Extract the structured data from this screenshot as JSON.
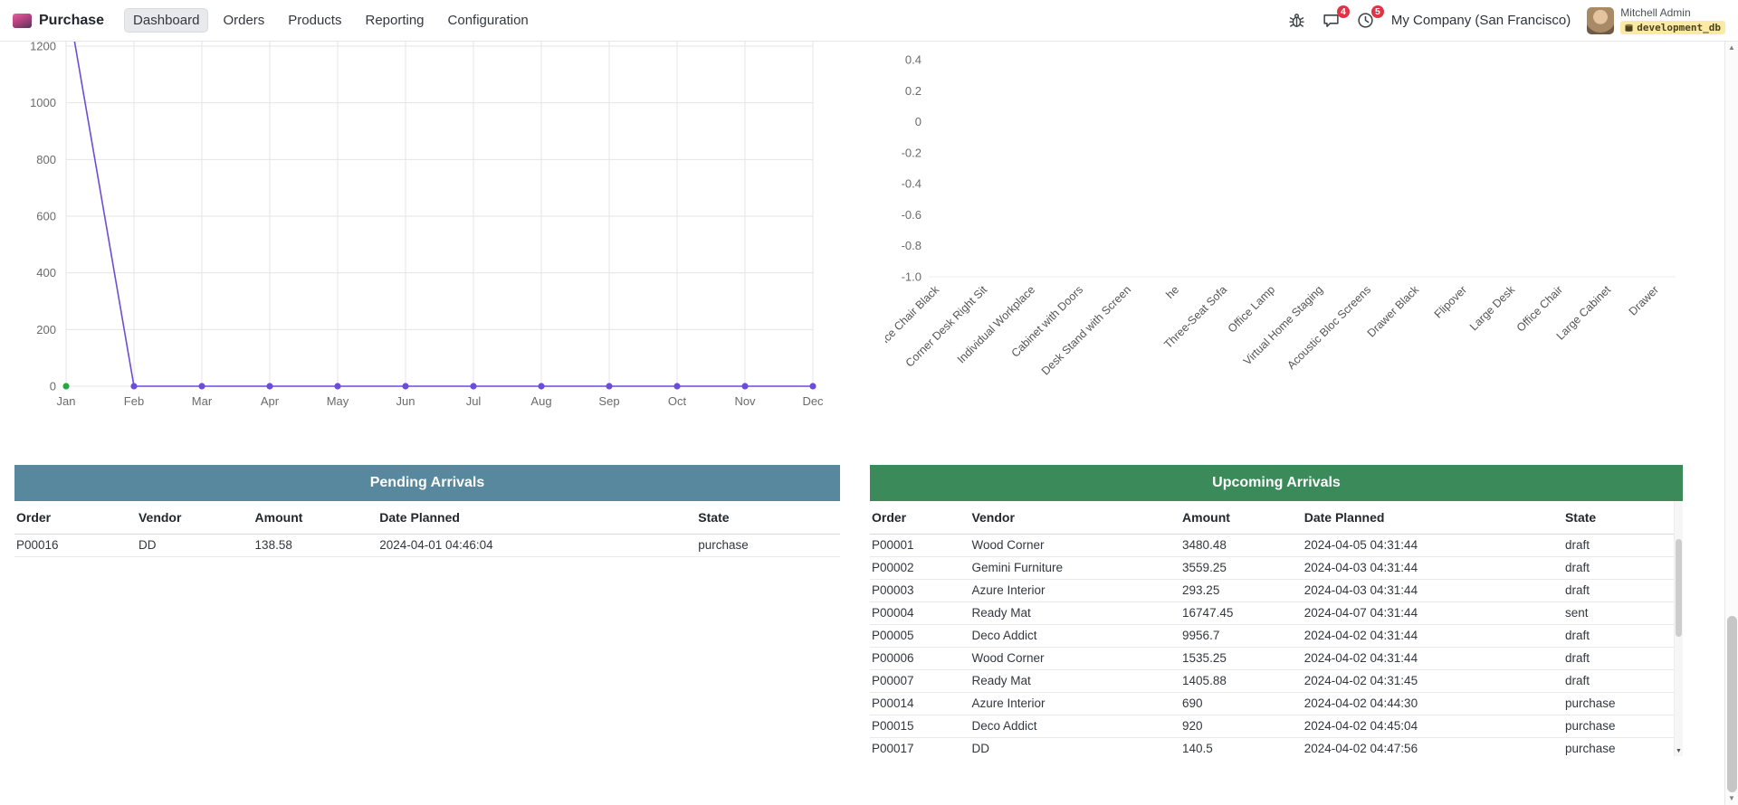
{
  "colors": {
    "badge_red": "#dc3545",
    "db_badge_bg": "#fbeaa6",
    "pending_header_bg": "#57889d",
    "upcoming_header_bg": "#3a8a5a",
    "line_purple": "#6d4cd6",
    "dot_green": "#28a745"
  },
  "nav": {
    "app_name": "Purchase",
    "items": [
      {
        "label": "Dashboard",
        "active": true
      },
      {
        "label": "Orders",
        "active": false
      },
      {
        "label": "Products",
        "active": false
      },
      {
        "label": "Reporting",
        "active": false
      },
      {
        "label": "Configuration",
        "active": false
      }
    ],
    "messages_badge": "4",
    "activities_badge": "5",
    "company": "My Company (San Francisco)",
    "user_name": "Mitchell Admin",
    "database": "development_db"
  },
  "chart_data": [
    {
      "type": "line",
      "x": [
        "Jan",
        "Feb",
        "Mar",
        "Apr",
        "May",
        "Jun",
        "Jul",
        "Aug",
        "Sep",
        "Oct",
        "Nov",
        "Dec"
      ],
      "series": [
        {
          "name": "purchase-amount",
          "color": "#6d4cd6",
          "values": [
            1390,
            0,
            0,
            0,
            0,
            0,
            0,
            0,
            0,
            0,
            0,
            0
          ]
        },
        {
          "name": "secondary-point",
          "color": "#28a745",
          "values": [
            0,
            null,
            null,
            null,
            null,
            null,
            null,
            null,
            null,
            null,
            null,
            null
          ]
        }
      ],
      "ylim": [
        0,
        1200
      ],
      "yticks": [
        0,
        200,
        400,
        600,
        800,
        1000,
        1200
      ],
      "grid": true,
      "legend_position": "none"
    },
    {
      "type": "scatter",
      "categories": [
        "Office Chair Black",
        "Corner Desk Right Sit",
        "Individual Workplace",
        "Cabinet with Doors",
        "Desk Stand with Screen",
        "he",
        "Three-Seat Sofa",
        "Office Lamp",
        "Virtual Home Staging",
        "Acoustic Bloc Screens",
        "Drawer Black",
        "Flipover",
        "Large Desk",
        "Office Chair",
        "Large Cabinet",
        "Drawer"
      ],
      "values": [],
      "ylim": [
        -1.0,
        0.4
      ],
      "yticks": [
        "0.4",
        "0.2",
        "0",
        "-0.2",
        "-0.4",
        "-0.6",
        "-0.8",
        "-1.0"
      ],
      "grid": false,
      "legend_position": "none"
    }
  ],
  "pending": {
    "title": "Pending Arrivals",
    "columns": [
      "Order",
      "Vendor",
      "Amount",
      "Date Planned",
      "State"
    ],
    "rows": [
      [
        "P00016",
        "DD",
        "138.58",
        "2024-04-01 04:46:04",
        "purchase"
      ]
    ]
  },
  "upcoming": {
    "title": "Upcoming Arrivals",
    "columns": [
      "Order",
      "Vendor",
      "Amount",
      "Date Planned",
      "State"
    ],
    "rows": [
      [
        "P00001",
        "Wood Corner",
        "3480.48",
        "2024-04-05 04:31:44",
        "draft"
      ],
      [
        "P00002",
        "Gemini Furniture",
        "3559.25",
        "2024-04-03 04:31:44",
        "draft"
      ],
      [
        "P00003",
        "Azure Interior",
        "293.25",
        "2024-04-03 04:31:44",
        "draft"
      ],
      [
        "P00004",
        "Ready Mat",
        "16747.45",
        "2024-04-07 04:31:44",
        "sent"
      ],
      [
        "P00005",
        "Deco Addict",
        "9956.7",
        "2024-04-02 04:31:44",
        "draft"
      ],
      [
        "P00006",
        "Wood Corner",
        "1535.25",
        "2024-04-02 04:31:44",
        "draft"
      ],
      [
        "P00007",
        "Ready Mat",
        "1405.88",
        "2024-04-02 04:31:45",
        "draft"
      ],
      [
        "P00014",
        "Azure Interior",
        "690",
        "2024-04-02 04:44:30",
        "purchase"
      ],
      [
        "P00015",
        "Deco Addict",
        "920",
        "2024-04-02 04:45:04",
        "purchase"
      ],
      [
        "P00017",
        "DD",
        "140.5",
        "2024-04-02 04:47:56",
        "purchase"
      ]
    ]
  }
}
